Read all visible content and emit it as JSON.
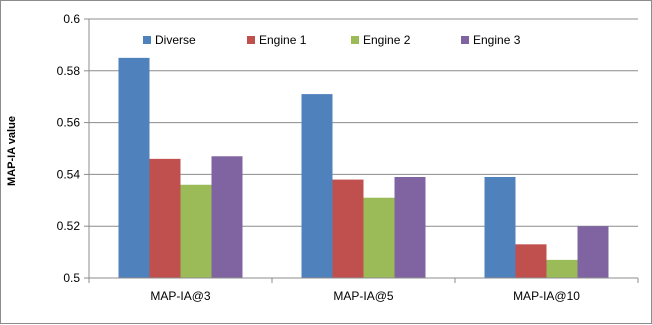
{
  "chart_data": {
    "type": "bar",
    "title": "",
    "xlabel": "",
    "ylabel": "MAP-IA value",
    "ylim": [
      0.5,
      0.6
    ],
    "yticks": [
      "0.5",
      "0.52",
      "0.54",
      "0.56",
      "0.58",
      "0.6"
    ],
    "grid": true,
    "legend_position": "top",
    "categories": [
      "MAP-IA@3",
      "MAP-IA@5",
      "MAP-IA@10"
    ],
    "series": [
      {
        "name": "Diverse",
        "color": "#4f81bd",
        "values": [
          0.585,
          0.571,
          0.539
        ]
      },
      {
        "name": "Engine 1",
        "color": "#c0504d",
        "values": [
          0.546,
          0.538,
          0.513
        ]
      },
      {
        "name": "Engine 2",
        "color": "#9bbb59",
        "values": [
          0.536,
          0.531,
          0.507
        ]
      },
      {
        "name": "Engine 3",
        "color": "#8064a2",
        "values": [
          0.547,
          0.539,
          0.52
        ]
      }
    ]
  }
}
